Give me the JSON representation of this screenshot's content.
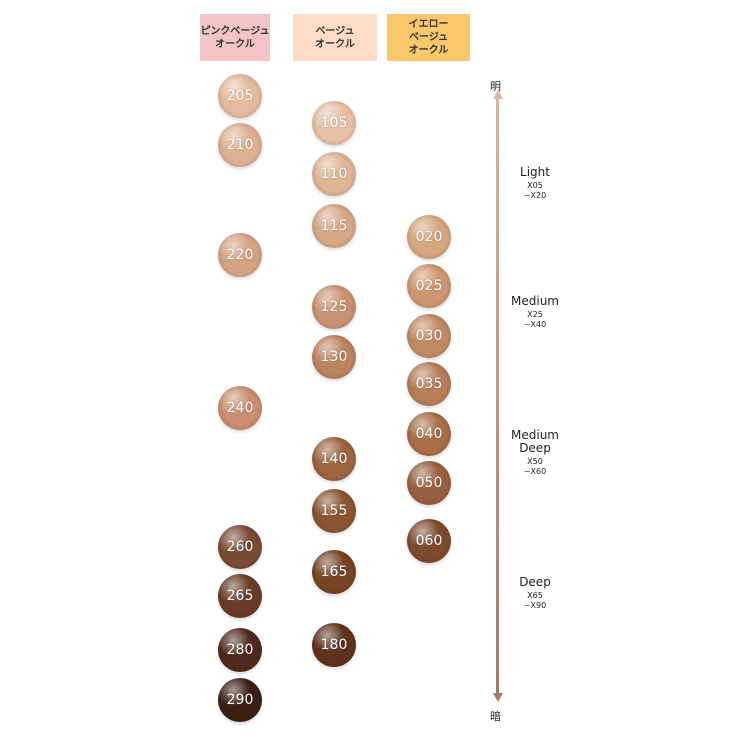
{
  "columns": [
    {
      "header": "ピンクベージュ\nオークル",
      "bg": "#f4c5c6",
      "shades": [
        {
          "code": "205",
          "color": "#e3bb9f"
        },
        {
          "code": "210",
          "color": "#ddb193"
        },
        {
          "code": "220",
          "color": "#d5a382"
        },
        {
          "code": "240",
          "color": "#c98f6f"
        },
        {
          "code": "260",
          "color": "#7a4a35"
        },
        {
          "code": "265",
          "color": "#6a3c28"
        },
        {
          "code": "280",
          "color": "#4f2a1c"
        },
        {
          "code": "290",
          "color": "#3c1f14"
        }
      ]
    },
    {
      "header": "ベージュ\nオークル",
      "bg": "#fddcc6",
      "shades": [
        {
          "code": "105",
          "color": "#e6c1a4"
        },
        {
          "code": "110",
          "color": "#dfb595"
        },
        {
          "code": "115",
          "color": "#d6a886"
        },
        {
          "code": "125",
          "color": "#c99270"
        },
        {
          "code": "130",
          "color": "#bd8460"
        },
        {
          "code": "140",
          "color": "#9c6440"
        },
        {
          "code": "155",
          "color": "#8c5532"
        },
        {
          "code": "165",
          "color": "#774425"
        },
        {
          "code": "180",
          "color": "#5e331c"
        }
      ]
    },
    {
      "header": "イエロー\nベージュ\nオークル",
      "bg": "#f8c86a",
      "shades": [
        {
          "code": "020",
          "color": "#d6a67e"
        },
        {
          "code": "025",
          "color": "#cc9770"
        },
        {
          "code": "030",
          "color": "#c28a62"
        },
        {
          "code": "035",
          "color": "#b77e58"
        },
        {
          "code": "040",
          "color": "#a86e48"
        },
        {
          "code": "050",
          "color": "#996040"
        },
        {
          "code": "060",
          "color": "#7e4a2e"
        }
      ]
    }
  ],
  "scale": {
    "top_label": "明",
    "bottom_label": "暗",
    "levels": [
      {
        "name": "Light",
        "range": "X05\n~X20"
      },
      {
        "name": "Medium",
        "range": "X25\n~X40"
      },
      {
        "name": "Medium\nDeep",
        "range": "X50\n~X60"
      },
      {
        "name": "Deep",
        "range": "X65\n~X90"
      }
    ]
  }
}
